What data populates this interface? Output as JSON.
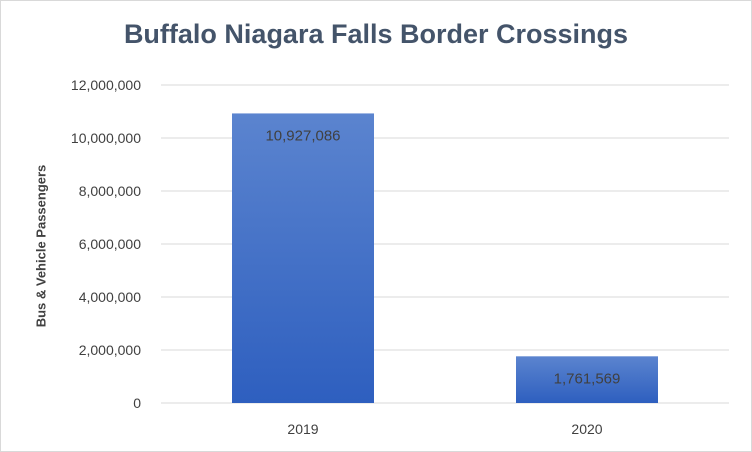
{
  "chart_data": {
    "type": "bar",
    "title": "Buffalo Niagara Falls Border Crossings",
    "xlabel": "",
    "ylabel": "Bus & Vehicle Passengers",
    "categories": [
      "2019",
      "2020"
    ],
    "values": [
      10927086,
      1761569
    ],
    "data_labels": [
      "10,927,086",
      "1,761,569"
    ],
    "ylim": [
      0,
      12000000
    ],
    "yticks": [
      0,
      2000000,
      4000000,
      6000000,
      8000000,
      10000000,
      12000000
    ],
    "ytick_labels": [
      "0",
      "2,000,000",
      "4,000,000",
      "6,000,000",
      "8,000,000",
      "10,000,000",
      "12,000,000"
    ],
    "grid": true,
    "legend": "none",
    "colors": {
      "bar_top": "#5b84cf",
      "bar_bottom": "#2e5fbf",
      "grid": "#d9d9d9",
      "label": "#404040"
    }
  }
}
